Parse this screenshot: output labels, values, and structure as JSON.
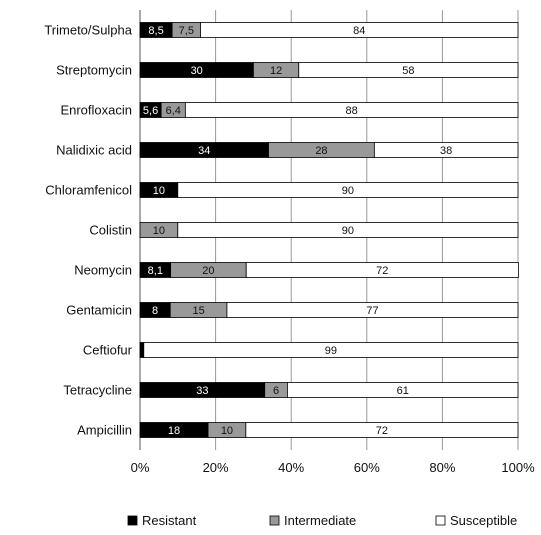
{
  "chart_data": {
    "type": "bar",
    "orientation": "horizontal",
    "stacked": "percent",
    "categories": [
      "Trimeto/Sulpha",
      "Streptomycin",
      "Enrofloxacin",
      "Nalidixic acid",
      "Chloramfenicol",
      "Colistin",
      "Neomycin",
      "Gentamicin",
      "Ceftiofur",
      "Tetracycline",
      "Ampicillin"
    ],
    "series": [
      {
        "name": "Resistant",
        "color": "#000000",
        "values": [
          8.5,
          30,
          5.6,
          34,
          10,
          0,
          8.1,
          8,
          1,
          33,
          18
        ],
        "labels": [
          "8,5",
          "30",
          "5,6",
          "34",
          "10",
          "",
          "8,1",
          "8",
          "",
          "33",
          "18"
        ]
      },
      {
        "name": "Intermediate",
        "color": "#999999",
        "values": [
          7.5,
          12,
          6.4,
          28,
          0,
          10,
          20,
          15,
          0,
          6,
          10
        ],
        "labels": [
          "7,5",
          "12",
          "6,4",
          "28",
          "",
          "10",
          "20",
          "15",
          "",
          "6",
          "10"
        ]
      },
      {
        "name": "Susceptible",
        "color": "#ffffff",
        "values": [
          84,
          58,
          88,
          38,
          90,
          90,
          72,
          77,
          99,
          61,
          72
        ],
        "labels": [
          "84",
          "58",
          "88",
          "38",
          "90",
          "90",
          "72",
          "77",
          "99",
          "61",
          "72"
        ]
      }
    ],
    "x_ticks": [
      "0%",
      "20%",
      "40%",
      "60%",
      "80%",
      "100%"
    ],
    "xlim": [
      0,
      100
    ],
    "grid": "vertical",
    "legend": "bottom",
    "title": "",
    "xlabel": "",
    "ylabel": ""
  }
}
